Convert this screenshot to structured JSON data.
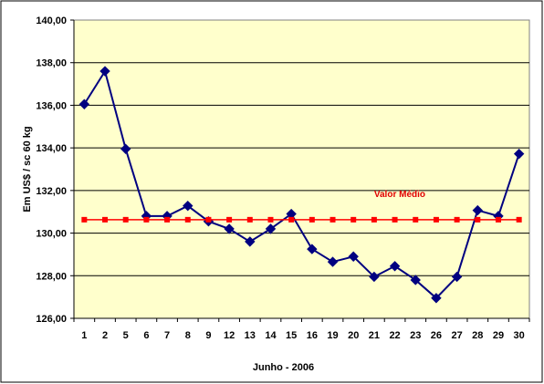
{
  "chart_data": {
    "type": "line",
    "title": "",
    "xlabel": "Junho - 2006",
    "ylabel": "Em US$ / sc 60 kg",
    "ylim": [
      126,
      140
    ],
    "yticks": [
      "126,00",
      "128,00",
      "130,00",
      "132,00",
      "134,00",
      "136,00",
      "138,00",
      "140,00"
    ],
    "categories": [
      "1",
      "2",
      "5",
      "6",
      "7",
      "8",
      "9",
      "12",
      "13",
      "14",
      "15",
      "16",
      "19",
      "20",
      "21",
      "22",
      "23",
      "26",
      "27",
      "28",
      "29",
      "30"
    ],
    "series": [
      {
        "name": "",
        "color": "#000080",
        "marker": "diamond",
        "values": [
          136.05,
          137.6,
          133.95,
          130.8,
          130.8,
          131.28,
          130.55,
          130.2,
          129.6,
          130.2,
          130.9,
          129.25,
          128.65,
          128.9,
          127.95,
          128.45,
          127.8,
          126.95,
          127.95,
          131.07,
          130.8,
          133.72
        ]
      },
      {
        "name": "Valor Médio",
        "color": "#ff0000",
        "marker": "square",
        "values": [
          130.63,
          130.63,
          130.63,
          130.63,
          130.63,
          130.63,
          130.63,
          130.63,
          130.63,
          130.63,
          130.63,
          130.63,
          130.63,
          130.63,
          130.63,
          130.63,
          130.63,
          130.63,
          130.63,
          130.63,
          130.63,
          130.63
        ]
      }
    ],
    "annotation": "Valor Médio",
    "plot_background": "#ffffcc",
    "grid": true
  }
}
